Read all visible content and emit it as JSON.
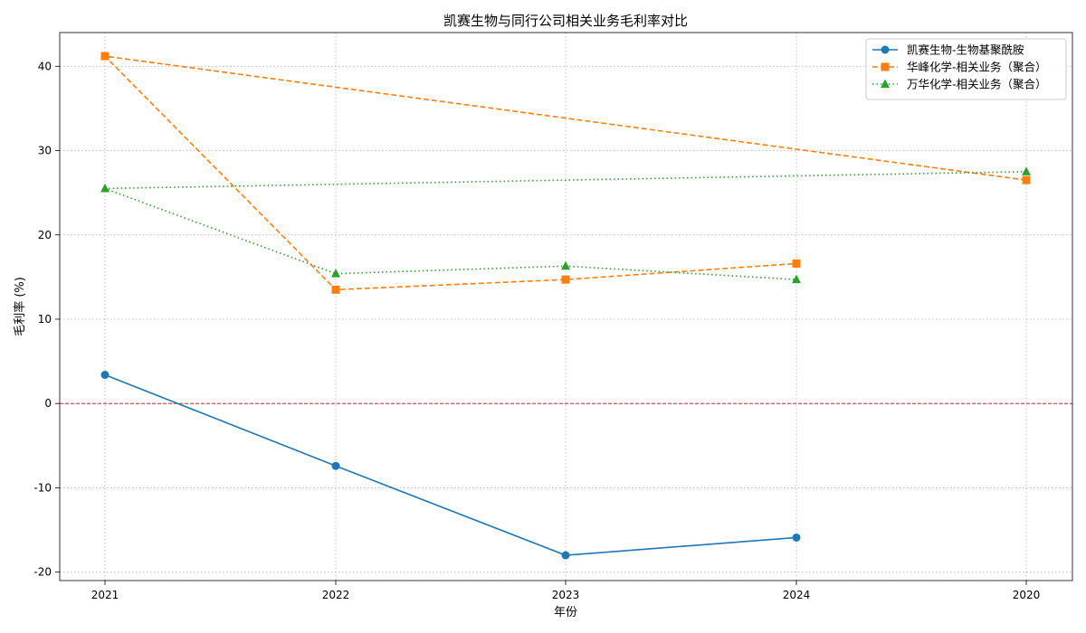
{
  "chart_data": {
    "type": "line",
    "title": "凯赛生物与同行公司相关业务毛利率对比",
    "xlabel": "年份",
    "ylabel": "毛利率 (%)",
    "categories": [
      "2021",
      "2022",
      "2023",
      "2024",
      "2020"
    ],
    "ylim": [
      -21,
      44
    ],
    "yticks": [
      -20,
      -10,
      0,
      10,
      20,
      30,
      40
    ],
    "grid": true,
    "legend_position": "top-right",
    "reference_line": {
      "y": 0,
      "color": "#d62728",
      "style": "dashed"
    },
    "series": [
      {
        "name": "凯赛生物-生物基聚酰胺",
        "color": "#1f77b4",
        "marker": "circle",
        "line_style": "solid",
        "x": [
          "2021",
          "2022",
          "2023",
          "2024"
        ],
        "values": [
          3.4,
          -7.4,
          -18.0,
          -15.9
        ]
      },
      {
        "name": "华峰化学-相关业务（聚合）",
        "color": "#ff7f0e",
        "marker": "square",
        "line_style": "dashed",
        "x": [
          "2021",
          "2022",
          "2023",
          "2024",
          "2020",
          "2021"
        ],
        "values": [
          41.2,
          13.5,
          14.7,
          16.6,
          26.5,
          41.2
        ],
        "path_order": [
          "2020",
          "2021",
          "2022",
          "2023",
          "2024"
        ],
        "path_values": [
          26.5,
          41.2,
          13.5,
          14.7,
          16.6
        ]
      },
      {
        "name": "万华化学-相关业务（聚合）",
        "color": "#2ca02c",
        "marker": "triangle",
        "line_style": "dotted",
        "path_order": [
          "2020",
          "2021",
          "2022",
          "2023",
          "2024"
        ],
        "path_values": [
          27.5,
          25.5,
          15.4,
          16.3,
          14.7
        ]
      }
    ]
  }
}
